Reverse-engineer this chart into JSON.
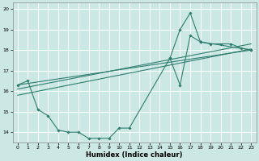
{
  "title": "",
  "xlabel": "Humidex (Indice chaleur)",
  "ylabel": "",
  "bg_color": "#cce8e4",
  "grid_color": "#ffffff",
  "line_color": "#2e7d6e",
  "marker": "D",
  "markersize": 1.8,
  "linewidth": 0.8,
  "ylim": [
    13.5,
    20.3
  ],
  "xlim": [
    -0.5,
    23.5
  ],
  "yticks": [
    14,
    15,
    16,
    17,
    18,
    19,
    20
  ],
  "xticks": [
    0,
    1,
    2,
    3,
    4,
    5,
    6,
    7,
    8,
    9,
    10,
    11,
    12,
    13,
    14,
    15,
    16,
    17,
    18,
    19,
    20,
    21,
    22,
    23
  ],
  "series_main": {
    "x": [
      0,
      1,
      2,
      3,
      4,
      5,
      6,
      7,
      8,
      9,
      10,
      11,
      15,
      16,
      17,
      18,
      19,
      20,
      21,
      22,
      23
    ],
    "y": [
      16.3,
      16.5,
      15.1,
      14.8,
      14.1,
      14.0,
      14.0,
      13.7,
      13.7,
      13.7,
      14.2,
      14.2,
      17.6,
      19.0,
      19.8,
      18.4,
      18.3,
      18.3,
      18.3,
      18.1,
      18.0
    ]
  },
  "series_secondary": {
    "x": [
      15,
      16,
      17,
      18,
      23
    ],
    "y": [
      17.6,
      16.3,
      18.7,
      18.4,
      18.0
    ]
  },
  "trend1": {
    "x": [
      0,
      23
    ],
    "y": [
      16.3,
      18.0
    ]
  },
  "trend2": {
    "x": [
      0,
      23
    ],
    "y": [
      16.1,
      18.3
    ]
  },
  "trend3": {
    "x": [
      0,
      23
    ],
    "y": [
      15.8,
      18.05
    ]
  }
}
